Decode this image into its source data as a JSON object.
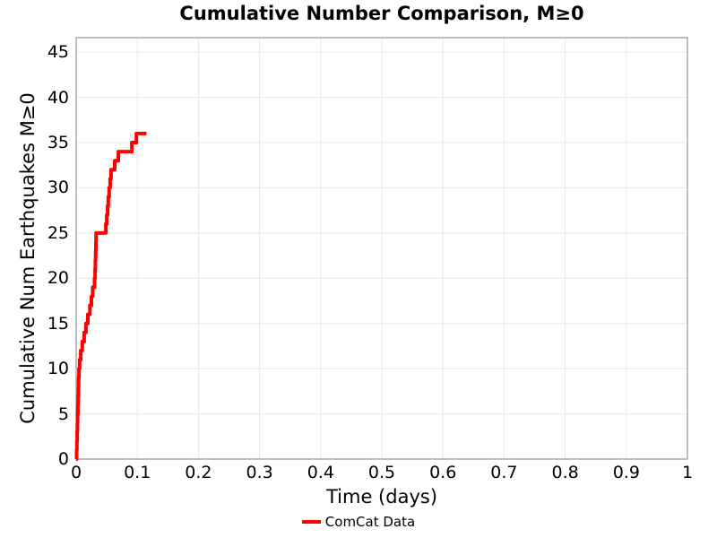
{
  "colors": {
    "background": "#ffffff",
    "text": "#000000",
    "grid": "#e8e8e8",
    "spine": "#aaaaaa",
    "accent_red": "#ff0000"
  },
  "chart_data": {
    "type": "line",
    "style": "step-post",
    "title": "Cumulative Number Comparison, M≥0",
    "xlabel": "Time (days)",
    "ylabel": "Cumulative Num Earthquakes M≥0",
    "xlim": [
      0,
      1
    ],
    "ylim": [
      0,
      46.6
    ],
    "xticks": [
      "0",
      "0.1",
      "0.2",
      "0.3",
      "0.4",
      "0.5",
      "0.6",
      "0.7",
      "0.8",
      "0.9",
      "1"
    ],
    "yticks": [
      "0",
      "5",
      "10",
      "15",
      "20",
      "25",
      "30",
      "35",
      "40",
      "45"
    ],
    "grid": true,
    "legend": {
      "position": "bottom-center",
      "entries": [
        {
          "label": "ComCat Data",
          "color": "#ff0000"
        }
      ]
    },
    "series": [
      {
        "name": "ComCat Data",
        "color": "#ff0000",
        "line_width": 4,
        "x": [
          0.0008,
          0.0012,
          0.0016,
          0.002,
          0.0024,
          0.0028,
          0.0032,
          0.0036,
          0.004,
          0.0045,
          0.0055,
          0.0075,
          0.01,
          0.013,
          0.016,
          0.019,
          0.0225,
          0.025,
          0.027,
          0.03,
          0.031,
          0.0314,
          0.0318,
          0.0322,
          0.0326,
          0.0485,
          0.05,
          0.0515,
          0.0525,
          0.054,
          0.0555,
          0.057,
          0.063,
          0.069,
          0.091,
          0.0985
        ],
        "y": [
          1,
          2,
          3,
          4,
          5,
          6,
          7,
          8,
          9,
          10,
          11,
          12,
          13,
          14,
          15,
          16,
          17,
          18,
          19,
          20,
          21,
          22,
          23,
          24,
          25,
          26,
          27,
          28,
          29,
          30,
          31,
          32,
          33,
          34,
          35,
          36
        ],
        "end_x": 0.115
      }
    ]
  }
}
